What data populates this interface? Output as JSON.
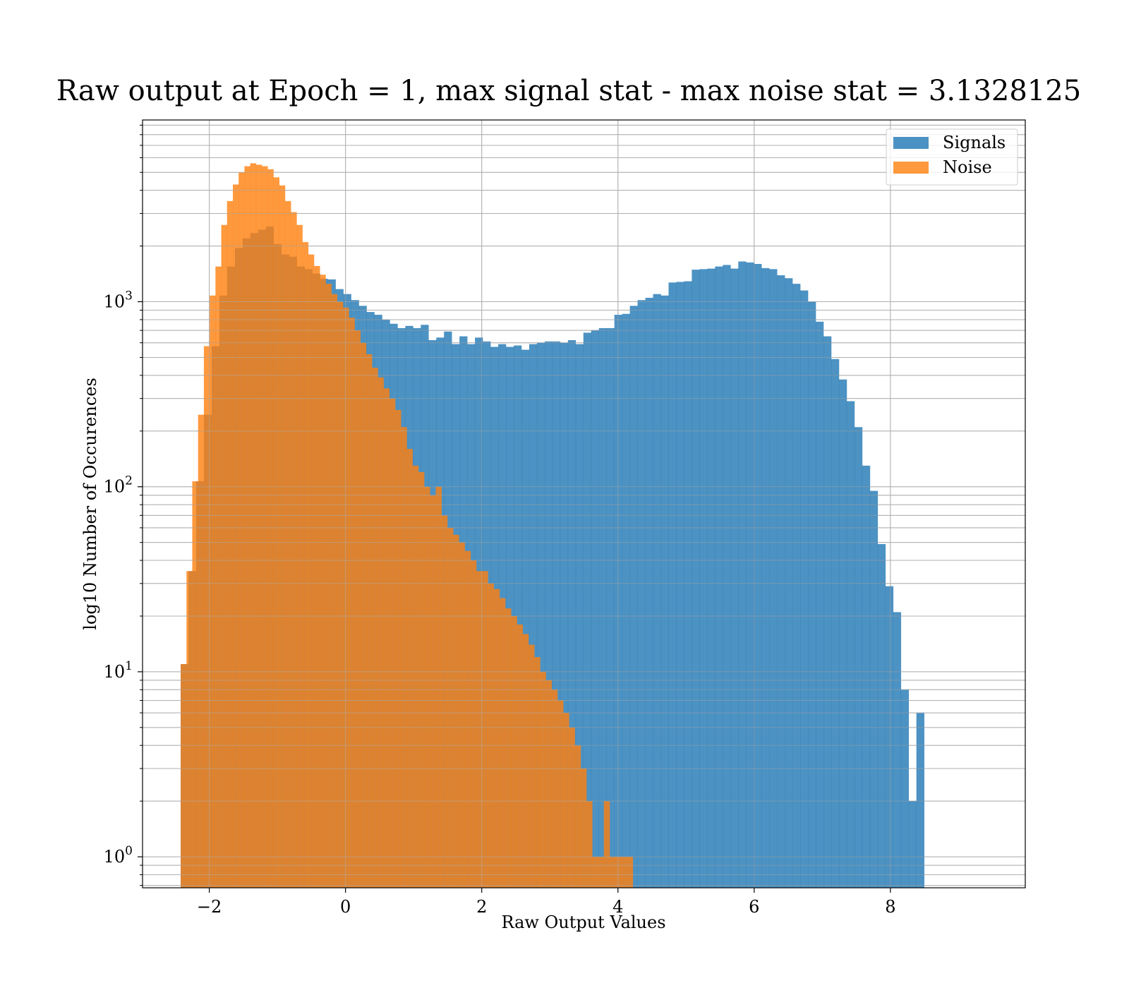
{
  "chart_data": {
    "type": "bar",
    "title": "Raw output at Epoch = 1, max signal stat - max noise stat = 3.1328125",
    "xlabel": "Raw Output Values",
    "ylabel": "log10 Number of Occurences",
    "xlim": [
      -2.98,
      9.98
    ],
    "ylim": [
      0.68,
      9600
    ],
    "yscale": "log",
    "grid": true,
    "legend_position": "top-right",
    "x_ticks": [
      {
        "value": -2,
        "label": "−2"
      },
      {
        "value": 0,
        "label": "0"
      },
      {
        "value": 2,
        "label": "2"
      },
      {
        "value": 4,
        "label": "4"
      },
      {
        "value": 6,
        "label": "6"
      },
      {
        "value": 8,
        "label": "8"
      }
    ],
    "y_ticks": [
      {
        "value": 1,
        "base": "10",
        "exp": "0"
      },
      {
        "value": 10,
        "base": "10",
        "exp": "1"
      },
      {
        "value": 100,
        "base": "10",
        "exp": "2"
      },
      {
        "value": 1000,
        "base": "10",
        "exp": "3"
      }
    ],
    "series": [
      {
        "name": "Signals",
        "color": "#1f77b4",
        "alpha": 0.8,
        "bin_start": -2.42,
        "bin_width": 0.1137,
        "values": [
          11,
          35,
          107,
          245,
          575,
          1080,
          1550,
          1950,
          2200,
          2350,
          2450,
          2550,
          2050,
          1800,
          1750,
          1550,
          1500,
          1420,
          1330,
          1320,
          1170,
          1100,
          1020,
          950,
          880,
          850,
          800,
          760,
          720,
          740,
          720,
          750,
          620,
          640,
          690,
          590,
          650,
          590,
          640,
          610,
          570,
          590,
          570,
          580,
          550,
          590,
          600,
          610,
          610,
          600,
          620,
          590,
          680,
          700,
          720,
          720,
          850,
          860,
          950,
          1020,
          1050,
          1100,
          1080,
          1270,
          1280,
          1290,
          1490,
          1500,
          1510,
          1550,
          1580,
          1510,
          1650,
          1630,
          1600,
          1520,
          1500,
          1390,
          1340,
          1250,
          1150,
          1000,
          780,
          650,
          490,
          380,
          290,
          210,
          130,
          95,
          49,
          29,
          21,
          8,
          2,
          6
        ]
      },
      {
        "name": "Noise",
        "color": "#ff7f0e",
        "alpha": 0.8,
        "bin_start": -2.42,
        "bin_width": 0.0851,
        "values": [
          11,
          35,
          107,
          245,
          575,
          1080,
          1550,
          2600,
          3500,
          4300,
          5000,
          5400,
          5600,
          5500,
          5400,
          5200,
          4700,
          4250,
          3500,
          3050,
          2600,
          2100,
          1800,
          1560,
          1400,
          1250,
          1100,
          1000,
          930,
          820,
          700,
          600,
          520,
          440,
          390,
          340,
          300,
          260,
          210,
          160,
          130,
          120,
          100,
          90,
          100,
          70,
          60,
          55,
          50,
          45,
          40,
          35,
          35,
          30,
          28,
          25,
          22,
          20,
          18,
          16,
          14,
          12,
          10,
          9,
          8,
          7,
          6,
          5,
          4,
          3,
          2,
          1,
          1,
          2,
          1,
          1,
          1,
          1
        ]
      }
    ]
  }
}
